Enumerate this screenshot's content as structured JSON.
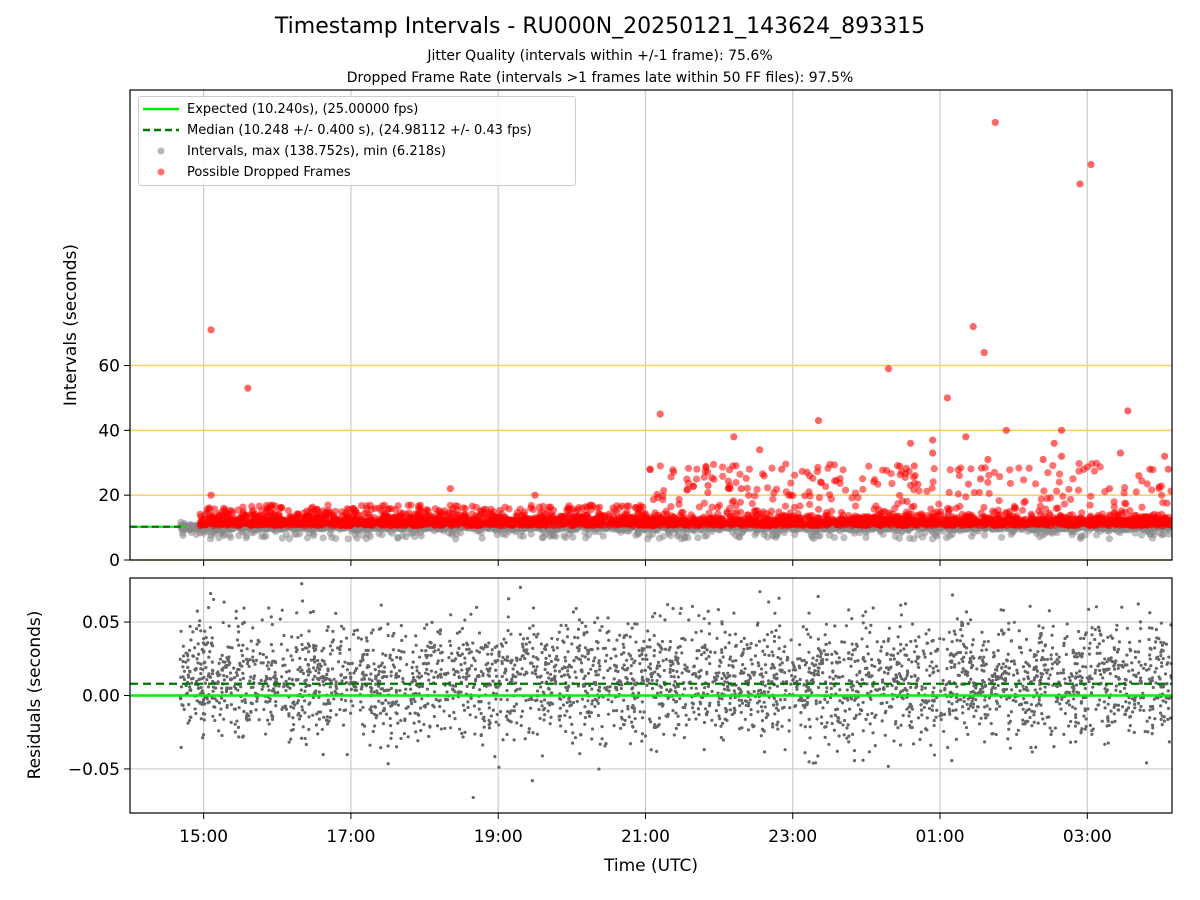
{
  "title": "Timestamp Intervals - RU000N_20250121_143624_893315",
  "subtitle_1": "Jitter Quality (intervals within +/-1 frame): 75.6%",
  "subtitle_2": "Dropped Frame Rate (intervals >1 frames late within 50 FF files): 97.5%",
  "colors": {
    "expected": "#00ee00",
    "median": "#007700",
    "intervals": "#888888",
    "dropped": "#ff0000",
    "threshold_lines": "#ffcc66",
    "residuals": "#666666"
  },
  "legend": {
    "expected": "Expected (10.240s), (25.00000 fps)",
    "median": "Median (10.248 +/- 0.400 s), (24.98112 +/- 0.43 fps)",
    "intervals": "Intervals, max (138.752s), min (6.218s)",
    "dropped": "Possible Dropped Frames"
  },
  "chart_data": [
    {
      "type": "scatter",
      "xlabel": "",
      "ylabel": "Intervals (seconds)",
      "x_range_hours": [
        14.0,
        28.15
      ],
      "ylim": [
        0,
        145
      ],
      "y_ticks": [
        0,
        20,
        40,
        60
      ],
      "y_tick_labels": [
        "0",
        "20",
        "40",
        "60"
      ],
      "threshold_lines": [
        20,
        40,
        60
      ],
      "expected_interval": 10.24,
      "median_interval": 10.248,
      "series": [
        {
          "name": "Intervals, max (138.752s), min (6.218s)",
          "note_points": "dense band of intervals near 10.24 s across 14:40–04:10 UTC"
        },
        {
          "name": "Possible Dropped Frames",
          "x_hours": [
            15.1,
            15.1,
            15.6,
            18.35,
            19.5,
            21.2,
            21.85,
            22.2,
            22.3,
            22.55,
            22.85,
            23.35,
            24.3,
            24.6,
            24.65,
            24.9,
            24.9,
            25.1,
            25.35,
            25.45,
            25.55,
            25.6,
            25.65,
            25.75,
            25.9,
            26.4,
            26.55,
            26.65,
            26.65,
            26.9,
            27.05,
            27.3,
            27.45,
            27.55,
            27.7,
            27.85,
            28.05,
            28.1
          ],
          "y": [
            71,
            20,
            53,
            22,
            20,
            45,
            23,
            38,
            22,
            34,
            28,
            43,
            59,
            36,
            29,
            37,
            33,
            50,
            38,
            72,
            25,
            64,
            31,
            135,
            40,
            31,
            36,
            32,
            40,
            116,
            122,
            22,
            33,
            46,
            26,
            28,
            32,
            28
          ]
        }
      ]
    },
    {
      "type": "scatter",
      "xlabel": "Time (UTC)",
      "ylabel": "Residuals (seconds)",
      "x_range_hours": [
        14.0,
        28.15
      ],
      "ylim": [
        -0.08,
        0.08
      ],
      "y_ticks": [
        -0.05,
        0.0,
        0.05
      ],
      "y_tick_labels": [
        "−0.05",
        "0.00",
        "0.05"
      ],
      "expected_residual": 0.0,
      "median_residual": 0.008,
      "x_ticks_hours": [
        15,
        17,
        19,
        21,
        23,
        25,
        27
      ],
      "x_tick_labels": [
        "15:00",
        "17:00",
        "19:00",
        "21:00",
        "23:00",
        "01:00",
        "03:00"
      ],
      "note_points": "residual scatter mostly between -0.03 and 0.05 s"
    }
  ]
}
